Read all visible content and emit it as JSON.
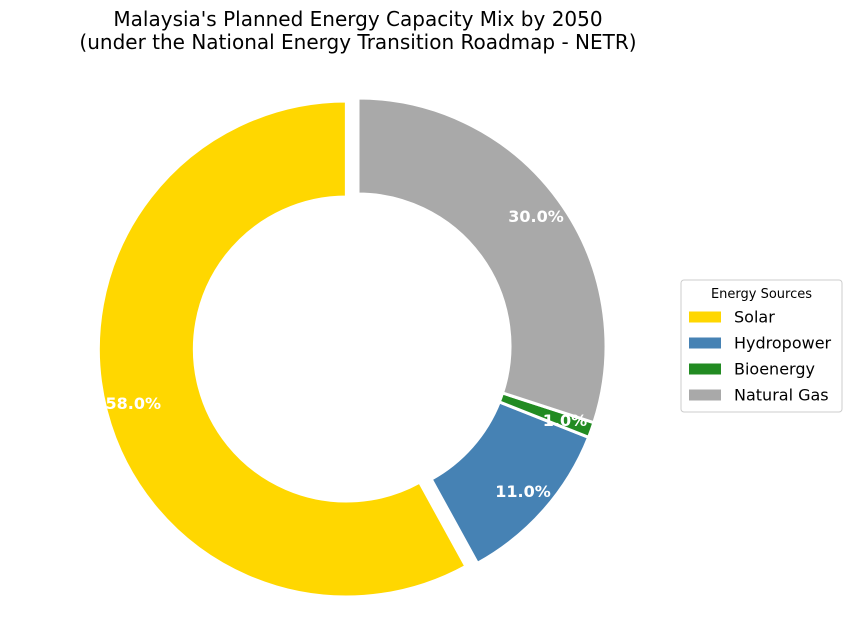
{
  "chart_data": {
    "type": "pie",
    "style": "donut",
    "title": "Malaysia's Planned Energy Capacity Mix by 2050",
    "subtitle": "(under the National Energy Transition Roadmap - NETR)",
    "legend_title": "Energy Sources",
    "legend_position": "right",
    "series": [
      {
        "name": "Solar",
        "value": 58.0,
        "label": "58.0%",
        "color": "#FFD700",
        "exploded": true
      },
      {
        "name": "Hydropower",
        "value": 11.0,
        "label": "11.0%",
        "color": "#4682B4",
        "exploded": false
      },
      {
        "name": "Bioenergy",
        "value": 1.0,
        "label": "1.0%",
        "color": "#228B22",
        "exploded": false
      },
      {
        "name": "Natural Gas",
        "value": 30.0,
        "label": "30.0%",
        "color": "#A9A9A9",
        "exploded": false
      }
    ]
  }
}
